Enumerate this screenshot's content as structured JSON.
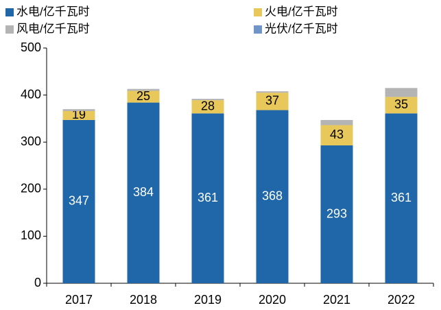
{
  "chart_data": {
    "type": "stacked_bar",
    "categories": [
      "2017",
      "2018",
      "2019",
      "2020",
      "2021",
      "2022"
    ],
    "series": [
      {
        "name": "水电/亿千瓦时",
        "color": "#1f67a8",
        "values": [
          347,
          384,
          361,
          368,
          293,
          361
        ],
        "label_color": "#ffffff"
      },
      {
        "name": "火电/亿千瓦时",
        "color": "#e8c75b",
        "values": [
          19,
          25,
          28,
          37,
          43,
          35
        ],
        "label_color": "#000000"
      },
      {
        "name": "风电/亿千瓦时",
        "color": "#b4b4b4",
        "values": [
          4,
          4,
          3,
          3,
          11,
          19
        ]
      },
      {
        "name": "光伏/亿千瓦时",
        "color": "#7094c8",
        "values": [
          0,
          0,
          0,
          0,
          0,
          0
        ]
      }
    ],
    "labeled_series": [
      0,
      1
    ],
    "ylim": [
      0,
      500
    ],
    "yticks": [
      0,
      100,
      200,
      300,
      400,
      500
    ]
  }
}
